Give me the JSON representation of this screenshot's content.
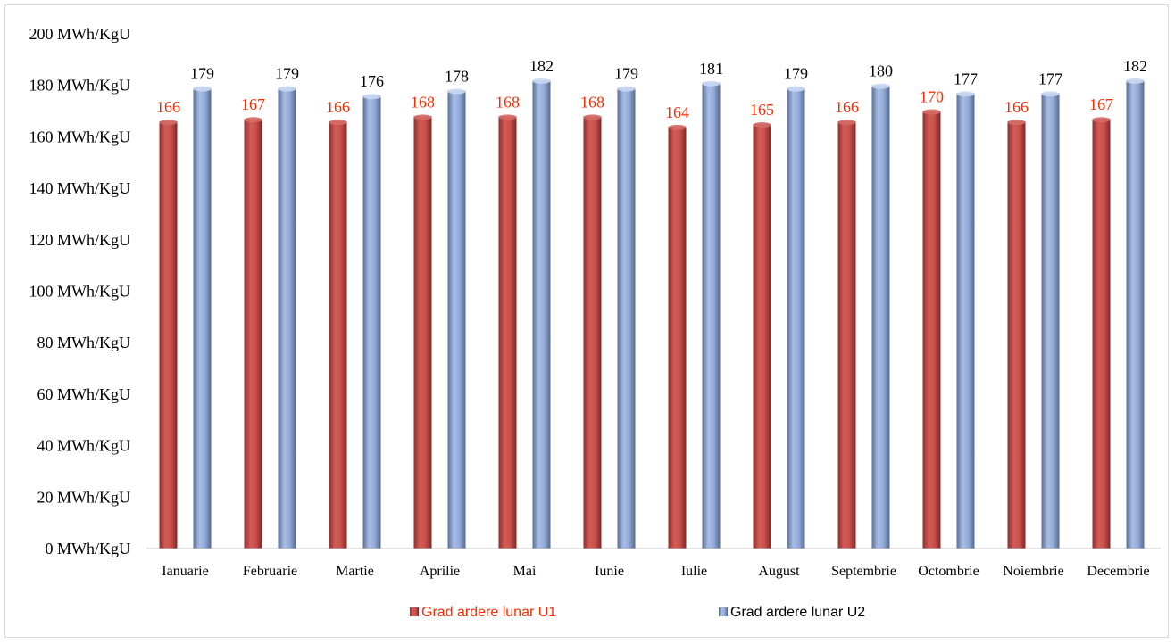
{
  "chart_data": {
    "type": "bar",
    "categories": [
      "Ianuarie",
      "Februarie",
      "Martie",
      "Aprilie",
      "Mai",
      "Iunie",
      "Iulie",
      "August",
      "Septembrie",
      "Octombrie",
      "Noiembrie",
      "Decembrie"
    ],
    "series": [
      {
        "name": "Grad ardere lunar U1",
        "values": [
          166,
          167,
          166,
          168,
          168,
          168,
          164,
          165,
          166,
          170,
          166,
          167
        ],
        "color": "#c0504d",
        "label_color": "#ff2a00"
      },
      {
        "name": "Grad ardere lunar U2",
        "values": [
          179,
          179,
          176,
          178,
          182,
          179,
          181,
          179,
          180,
          177,
          177,
          182
        ],
        "color": "#8ea9d8",
        "label_color": "#000000"
      }
    ],
    "y_ticks": [
      "0 MWh/KgU",
      "20 MWh/KgU",
      "40 MWh/KgU",
      "60 MWh/KgU",
      "80 MWh/KgU",
      "100 MWh/KgU",
      "120 MWh/KgU",
      "140 MWh/KgU",
      "160 MWh/KgU",
      "180 MWh/KgU",
      "200 MWh/KgU"
    ],
    "ylim": [
      0,
      200
    ],
    "y_step": 20,
    "grid": false,
    "legend_position": "bottom"
  }
}
